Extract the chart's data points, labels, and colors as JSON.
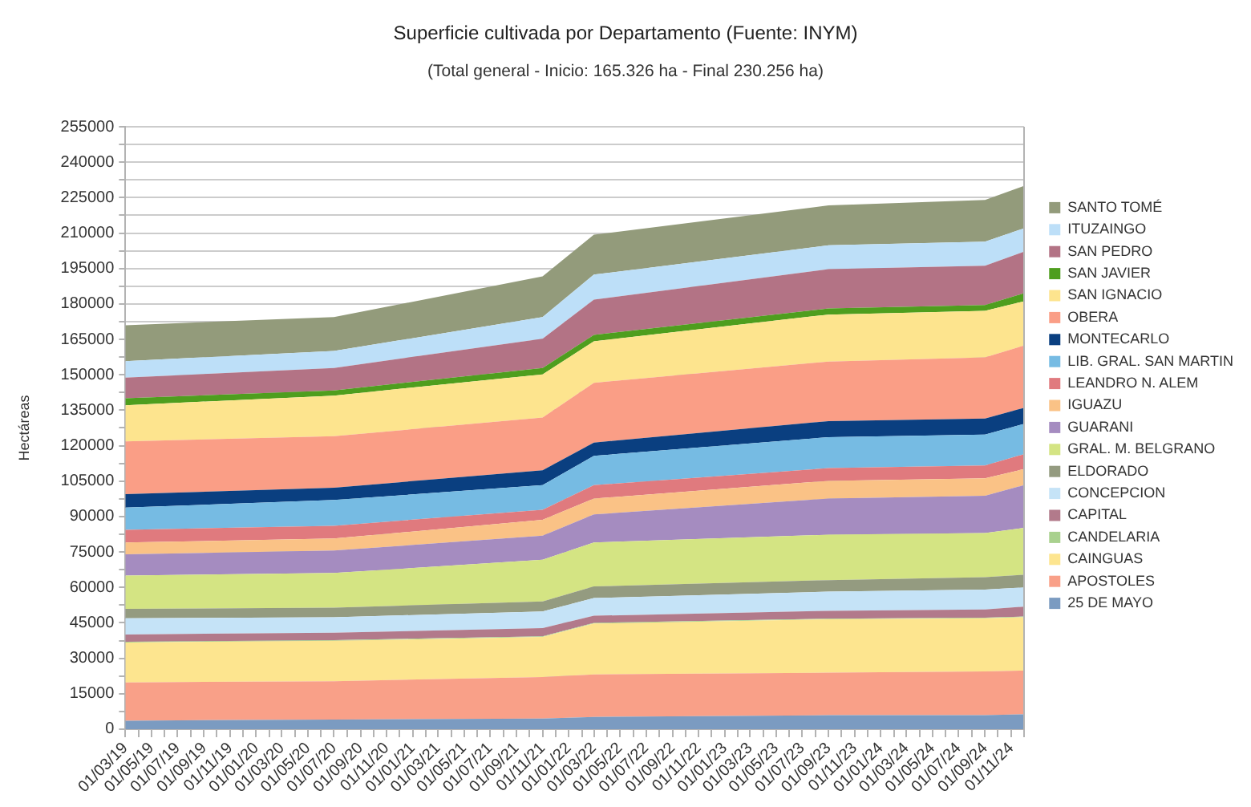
{
  "chart_data": {
    "type": "area",
    "stacked": true,
    "title": "Superficie cultivada por Departamento (Fuente: INYM)",
    "subtitle": "(Total general - Inicio: 165.326 ha - Final 230.256 ha)",
    "ylabel": "Hectáreas",
    "x": [
      "2019-03-01",
      "2020-07-01",
      "2021-11-01",
      "2022-03-01",
      "2023-09-01",
      "2024-09-01",
      "2024-12-01"
    ],
    "series": [
      {
        "name": "25 DE MAYO",
        "color": "#7b9bc1",
        "values": [
          3600,
          4100,
          4500,
          5200,
          5900,
          5900,
          6300
        ]
      },
      {
        "name": "APOSTOLES",
        "color": "#f9a088",
        "values": [
          16200,
          16200,
          17600,
          18000,
          18000,
          18500,
          18500
        ]
      },
      {
        "name": "CAINGUAS",
        "color": "#fde58f",
        "values": [
          16900,
          17100,
          16900,
          21500,
          22600,
          22500,
          22600
        ]
      },
      {
        "name": "CANDELARIA",
        "color": "#a9d18e",
        "values": [
          300,
          300,
          300,
          300,
          300,
          300,
          300
        ]
      },
      {
        "name": "CAPITAL",
        "color": "#b27a8b",
        "values": [
          3100,
          3100,
          3500,
          3000,
          3300,
          3500,
          4200
        ]
      },
      {
        "name": "CONCEPCION",
        "color": "#c5e3f7",
        "values": [
          6800,
          6600,
          7000,
          7500,
          8100,
          8400,
          8100
        ]
      },
      {
        "name": "ELDORADO",
        "color": "#949b80",
        "values": [
          4000,
          4000,
          4300,
          4900,
          4900,
          5200,
          5400
        ]
      },
      {
        "name": "GRAL. M. BELGRANO",
        "color": "#d4e483",
        "values": [
          14100,
          14700,
          17600,
          18600,
          19200,
          18700,
          19800
        ]
      },
      {
        "name": "GUARANI",
        "color": "#a58cc0",
        "values": [
          9000,
          9500,
          10200,
          11900,
          15300,
          15800,
          18100
        ]
      },
      {
        "name": "IGUAZU",
        "color": "#fac286",
        "values": [
          5000,
          5100,
          6700,
          6700,
          7500,
          7400,
          6800
        ]
      },
      {
        "name": "LEANDRO N. ALEM",
        "color": "#e07a7e",
        "values": [
          5400,
          5400,
          4300,
          5700,
          5400,
          5400,
          6300
        ]
      },
      {
        "name": "LIB. GRAL. SAN MARTIN",
        "color": "#76bbe3",
        "values": [
          9400,
          10900,
          10400,
          12400,
          13100,
          13100,
          12800
        ]
      },
      {
        "name": "MONTECARLO",
        "color": "#0a3f80",
        "values": [
          5700,
          5200,
          6300,
          5600,
          6800,
          6800,
          6800
        ]
      },
      {
        "name": "OBERA",
        "color": "#fa9e86",
        "values": [
          22300,
          21800,
          22300,
          25300,
          25200,
          25900,
          26400
        ]
      },
      {
        "name": "SAN IGNACIO",
        "color": "#fde48e",
        "values": [
          15300,
          17200,
          18300,
          17600,
          19900,
          19700,
          18700
        ]
      },
      {
        "name": "SAN JAVIER",
        "color": "#4e9e1e",
        "values": [
          3000,
          2200,
          2700,
          2700,
          2600,
          2400,
          3400
        ]
      },
      {
        "name": "SAN PEDRO",
        "color": "#b37385",
        "values": [
          8700,
          9500,
          12400,
          14900,
          16600,
          16700,
          17600
        ]
      },
      {
        "name": "ITUZAINGO",
        "color": "#bddff8",
        "values": [
          7000,
          7200,
          9100,
          10600,
          10100,
          10200,
          9900
        ]
      },
      {
        "name": "SANTO TOMÉ",
        "color": "#939b7b",
        "values": [
          15200,
          14300,
          17300,
          16900,
          16900,
          17600,
          18000
        ]
      }
    ],
    "xlim": [
      "2019-03-01",
      "2024-12-01"
    ],
    "xticks": [
      {
        "value": "2019-03-01",
        "label": "01/03/19"
      },
      {
        "value": "2019-04-01",
        "label": null
      },
      {
        "value": "2019-05-01",
        "label": "01/05/19"
      },
      {
        "value": "2019-06-01",
        "label": null
      },
      {
        "value": "2019-07-01",
        "label": "01/07/19"
      },
      {
        "value": "2019-08-01",
        "label": null
      },
      {
        "value": "2019-09-01",
        "label": "01/09/19"
      },
      {
        "value": "2019-10-01",
        "label": null
      },
      {
        "value": "2019-11-01",
        "label": "01/11/19"
      },
      {
        "value": "2019-12-01",
        "label": null
      },
      {
        "value": "2020-01-01",
        "label": "01/01/20"
      },
      {
        "value": "2020-02-01",
        "label": null
      },
      {
        "value": "2020-03-01",
        "label": "01/03/20"
      },
      {
        "value": "2020-04-01",
        "label": null
      },
      {
        "value": "2020-05-01",
        "label": "01/05/20"
      },
      {
        "value": "2020-06-01",
        "label": null
      },
      {
        "value": "2020-07-01",
        "label": "01/07/20"
      },
      {
        "value": "2020-08-01",
        "label": null
      },
      {
        "value": "2020-09-01",
        "label": "01/09/20"
      },
      {
        "value": "2020-10-01",
        "label": null
      },
      {
        "value": "2020-11-01",
        "label": "01/11/20"
      },
      {
        "value": "2020-12-01",
        "label": null
      },
      {
        "value": "2021-01-01",
        "label": "01/01/21"
      },
      {
        "value": "2021-02-01",
        "label": null
      },
      {
        "value": "2021-03-01",
        "label": "01/03/21"
      },
      {
        "value": "2021-04-01",
        "label": null
      },
      {
        "value": "2021-05-01",
        "label": "01/05/21"
      },
      {
        "value": "2021-06-01",
        "label": null
      },
      {
        "value": "2021-07-01",
        "label": "01/07/21"
      },
      {
        "value": "2021-08-01",
        "label": null
      },
      {
        "value": "2021-09-01",
        "label": "01/09/21"
      },
      {
        "value": "2021-10-01",
        "label": null
      },
      {
        "value": "2021-11-01",
        "label": "01/11/21"
      },
      {
        "value": "2021-12-01",
        "label": null
      },
      {
        "value": "2022-01-01",
        "label": "01/01/22"
      },
      {
        "value": "2022-02-01",
        "label": null
      },
      {
        "value": "2022-03-01",
        "label": "01/03/22"
      },
      {
        "value": "2022-04-01",
        "label": null
      },
      {
        "value": "2022-05-01",
        "label": "01/05/22"
      },
      {
        "value": "2022-06-01",
        "label": null
      },
      {
        "value": "2022-07-01",
        "label": "01/07/22"
      },
      {
        "value": "2022-08-01",
        "label": null
      },
      {
        "value": "2022-09-01",
        "label": "01/09/22"
      },
      {
        "value": "2022-10-01",
        "label": null
      },
      {
        "value": "2022-11-01",
        "label": "01/11/22"
      },
      {
        "value": "2022-12-01",
        "label": null
      },
      {
        "value": "2023-01-01",
        "label": "01/01/23"
      },
      {
        "value": "2023-02-01",
        "label": null
      },
      {
        "value": "2023-03-01",
        "label": "01/03/23"
      },
      {
        "value": "2023-04-01",
        "label": null
      },
      {
        "value": "2023-05-01",
        "label": "01/05/23"
      },
      {
        "value": "2023-06-01",
        "label": null
      },
      {
        "value": "2023-07-01",
        "label": "01/07/23"
      },
      {
        "value": "2023-08-01",
        "label": null
      },
      {
        "value": "2023-09-01",
        "label": "01/09/23"
      },
      {
        "value": "2023-10-01",
        "label": null
      },
      {
        "value": "2023-11-01",
        "label": "01/11/23"
      },
      {
        "value": "2023-12-01",
        "label": null
      },
      {
        "value": "2024-01-01",
        "label": "01/01/24"
      },
      {
        "value": "2024-02-01",
        "label": null
      },
      {
        "value": "2024-03-01",
        "label": "01/03/24"
      },
      {
        "value": "2024-04-01",
        "label": null
      },
      {
        "value": "2024-05-01",
        "label": "01/05/24"
      },
      {
        "value": "2024-06-01",
        "label": null
      },
      {
        "value": "2024-07-01",
        "label": "01/07/24"
      },
      {
        "value": "2024-08-01",
        "label": null
      },
      {
        "value": "2024-09-01",
        "label": "01/09/24"
      },
      {
        "value": "2024-10-01",
        "label": null
      },
      {
        "value": "2024-11-01",
        "label": "01/11/24"
      },
      {
        "value": "2024-12-01",
        "label": null
      }
    ],
    "ylim": [
      0,
      255000
    ],
    "yticks": [
      0,
      {
        "value": 7500,
        "label": null
      },
      15000,
      {
        "value": 22500,
        "label": null
      },
      30000,
      {
        "value": 37500,
        "label": null
      },
      45000,
      {
        "value": 52500,
        "label": null
      },
      60000,
      {
        "value": 67500,
        "label": null
      },
      75000,
      {
        "value": 82500,
        "label": null
      },
      90000,
      {
        "value": 97500,
        "label": null
      },
      105000,
      {
        "value": 112500,
        "label": null
      },
      120000,
      {
        "value": 127500,
        "label": null
      },
      135000,
      {
        "value": 142500,
        "label": null
      },
      150000,
      {
        "value": 157500,
        "label": null
      },
      165000,
      {
        "value": 172500,
        "label": null
      },
      180000,
      {
        "value": 187500,
        "label": null
      },
      195000,
      {
        "value": 202500,
        "label": null
      },
      210000,
      {
        "value": 217500,
        "label": null
      },
      225000,
      {
        "value": 232500,
        "label": null
      },
      240000,
      {
        "value": 247500,
        "label": null
      },
      255000
    ],
    "grid": "y",
    "legend": "right"
  }
}
